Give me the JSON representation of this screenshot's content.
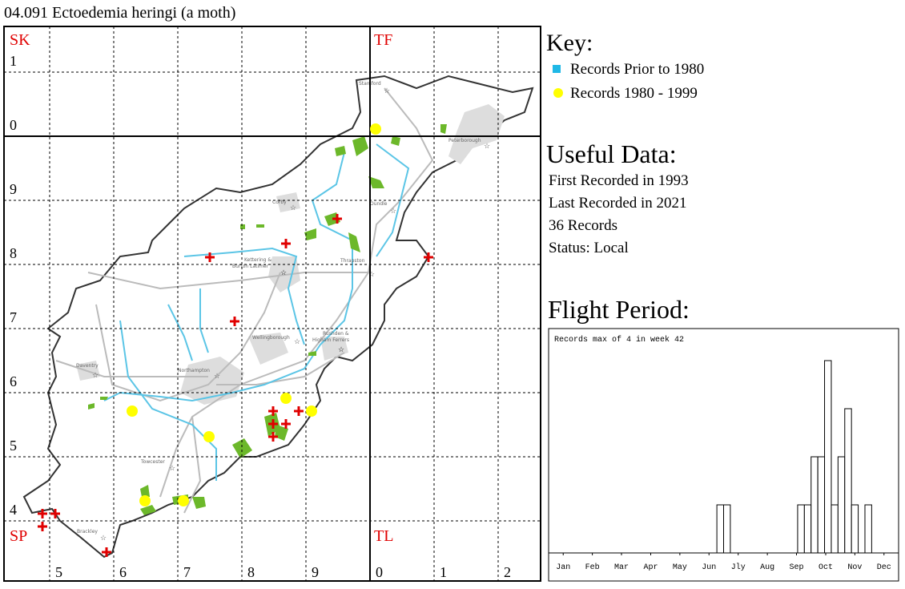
{
  "title": "04.091 Ectoedemia heringi (a moth)",
  "map": {
    "squares": [
      "SK",
      "TF",
      "SP",
      "TL"
    ],
    "row_labels": [
      "1",
      "0",
      "9",
      "8",
      "7",
      "6",
      "5",
      "4"
    ],
    "col_labels": [
      "5",
      "6",
      "7",
      "8",
      "9",
      "0",
      "1",
      "2"
    ],
    "towns": [
      "Stamford",
      "Peterborough",
      "Corby",
      "Oundle",
      "Kettering &",
      "Burton Latimer",
      "Thrapston",
      "Wellingborough",
      "Rushden &",
      "Higham Ferrers",
      "Northampton",
      "Daventry",
      "Towcester",
      "Brackley"
    ]
  },
  "key": {
    "title": "Key:",
    "items": [
      {
        "label": "Records Prior to 1980",
        "color": "#1fb8e6"
      },
      {
        "label": "Records 1980 - 1999",
        "color": "#ffff00"
      }
    ]
  },
  "useful_data": {
    "title": "Useful Data:",
    "lines": [
      "First Recorded in 1993",
      "Last Recorded in 2021",
      "36 Records",
      "Status: Local"
    ]
  },
  "chart_data": {
    "type": "histogram",
    "title": "Flight Period:",
    "annotation": "Records max of 4 in week 42",
    "bins": [
      0,
      1,
      2,
      3,
      4,
      5,
      6,
      7,
      8,
      9,
      10,
      11,
      12,
      13,
      14,
      15,
      16,
      17,
      18,
      19,
      20,
      21,
      22,
      23,
      24,
      25,
      26,
      27,
      28,
      29,
      30,
      31,
      32,
      33,
      34,
      35,
      36,
      37,
      38,
      39,
      40,
      41,
      42,
      43,
      44,
      45,
      46,
      47,
      48,
      49,
      50,
      51,
      52
    ],
    "values": [
      0,
      0,
      0,
      0,
      0,
      0,
      0,
      0,
      0,
      0,
      0,
      0,
      0,
      0,
      0,
      0,
      0,
      0,
      0,
      0,
      0,
      0,
      0,
      0,
      0,
      1,
      1,
      0,
      0,
      0,
      0,
      0,
      0,
      0,
      0,
      0,
      0,
      1,
      1,
      2,
      2,
      4,
      1,
      2,
      3,
      1,
      0,
      1,
      0,
      0,
      0,
      0
    ],
    "xlim": [
      0,
      52
    ],
    "xticks": [
      {
        "value": 2.17,
        "label": "Jan"
      },
      {
        "value": 6.5,
        "label": "Feb"
      },
      {
        "value": 10.83,
        "label": "Mar"
      },
      {
        "value": 15.17,
        "label": "Apr"
      },
      {
        "value": 19.5,
        "label": "May"
      },
      {
        "value": 23.83,
        "label": "Jun"
      },
      {
        "value": 28.17,
        "label": "Jly"
      },
      {
        "value": 32.5,
        "label": "Aug"
      },
      {
        "value": 36.83,
        "label": "Sep"
      },
      {
        "value": 41.17,
        "label": "Oct"
      },
      {
        "value": 45.5,
        "label": "Nov"
      },
      {
        "value": 49.83,
        "label": "Dec"
      }
    ],
    "ylim": [
      0,
      4
    ],
    "color": "#ffffff"
  }
}
